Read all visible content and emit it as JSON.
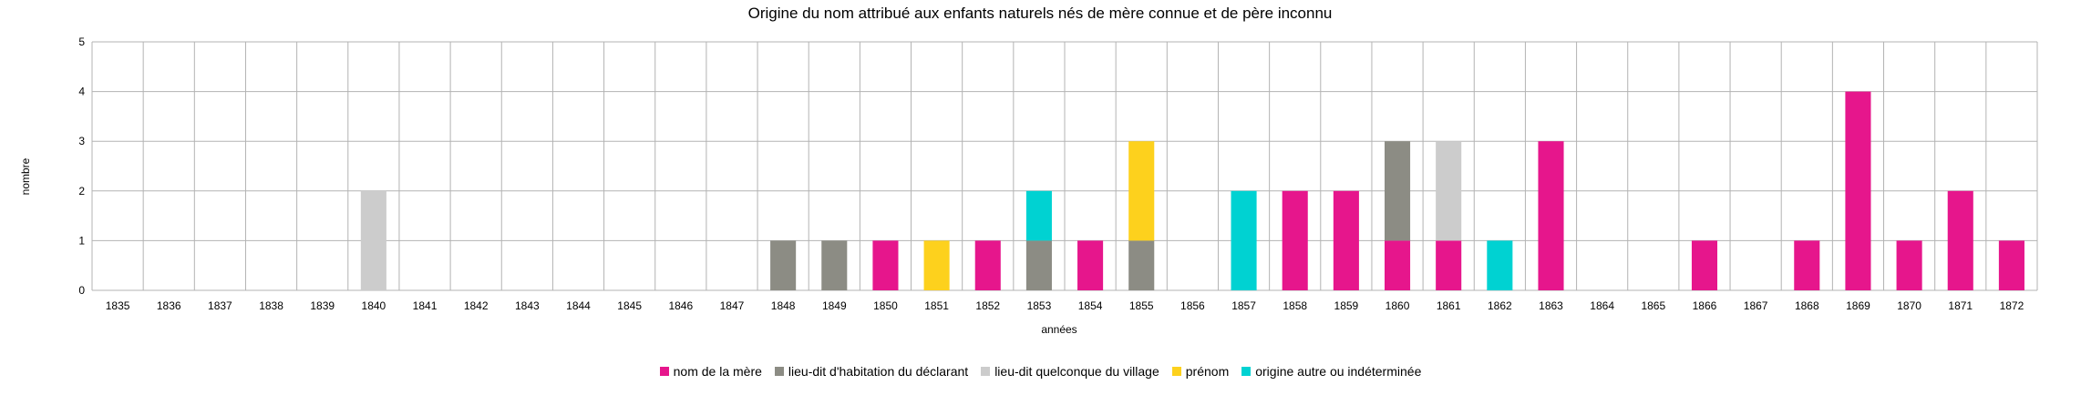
{
  "chart_data": {
    "type": "bar",
    "stacked": true,
    "title": "Origine du nom attribué aux enfants naturels nés de mère connue et de père inconnu",
    "xlabel": "années",
    "ylabel": "nombre",
    "ylim": [
      0,
      5
    ],
    "yticks": [
      "0",
      "1",
      "2",
      "3",
      "4",
      "5"
    ],
    "grid": true,
    "legend_position": "bottom",
    "categories": [
      "1835",
      "1836",
      "1837",
      "1838",
      "1839",
      "1840",
      "1841",
      "1842",
      "1843",
      "1844",
      "1845",
      "1846",
      "1847",
      "1848",
      "1849",
      "1850",
      "1851",
      "1852",
      "1853",
      "1854",
      "1855",
      "1856",
      "1857",
      "1858",
      "1859",
      "1860",
      "1861",
      "1862",
      "1863",
      "1864",
      "1865",
      "1866",
      "1867",
      "1868",
      "1869",
      "1870",
      "1871",
      "1872"
    ],
    "series": [
      {
        "name": "nom de la mère",
        "color": "#e6168c",
        "values": [
          0,
          0,
          0,
          0,
          0,
          0,
          0,
          0,
          0,
          0,
          0,
          0,
          0,
          0,
          0,
          1,
          0,
          1,
          0,
          1,
          0,
          0,
          0,
          2,
          2,
          1,
          1,
          0,
          3,
          0,
          0,
          1,
          0,
          1,
          4,
          1,
          2,
          1
        ]
      },
      {
        "name": "lieu-dit d'habitation du déclarant",
        "color": "#8c8c84",
        "values": [
          0,
          0,
          0,
          0,
          0,
          0,
          0,
          0,
          0,
          0,
          0,
          0,
          0,
          1,
          1,
          0,
          0,
          0,
          1,
          0,
          1,
          0,
          0,
          0,
          0,
          2,
          0,
          0,
          0,
          0,
          0,
          0,
          0,
          0,
          0,
          0,
          0,
          0
        ]
      },
      {
        "name": "lieu-dit quelconque du village",
        "color": "#cccccc",
        "values": [
          0,
          0,
          0,
          0,
          0,
          2,
          0,
          0,
          0,
          0,
          0,
          0,
          0,
          0,
          0,
          0,
          0,
          0,
          0,
          0,
          0,
          0,
          0,
          0,
          0,
          0,
          2,
          0,
          0,
          0,
          0,
          0,
          0,
          0,
          0,
          0,
          0,
          0
        ]
      },
      {
        "name": "prénom",
        "color": "#fdd11d",
        "values": [
          0,
          0,
          0,
          0,
          0,
          0,
          0,
          0,
          0,
          0,
          0,
          0,
          0,
          0,
          0,
          0,
          1,
          0,
          0,
          0,
          2,
          0,
          0,
          0,
          0,
          0,
          0,
          0,
          0,
          0,
          0,
          0,
          0,
          0,
          0,
          0,
          0,
          0
        ]
      },
      {
        "name": "origine autre ou indéterminée",
        "color": "#00d2d2",
        "values": [
          0,
          0,
          0,
          0,
          0,
          0,
          0,
          0,
          0,
          0,
          0,
          0,
          0,
          0,
          0,
          0,
          0,
          0,
          1,
          0,
          0,
          0,
          2,
          0,
          0,
          0,
          0,
          1,
          0,
          0,
          0,
          0,
          0,
          0,
          0,
          0,
          0,
          0
        ]
      }
    ]
  }
}
